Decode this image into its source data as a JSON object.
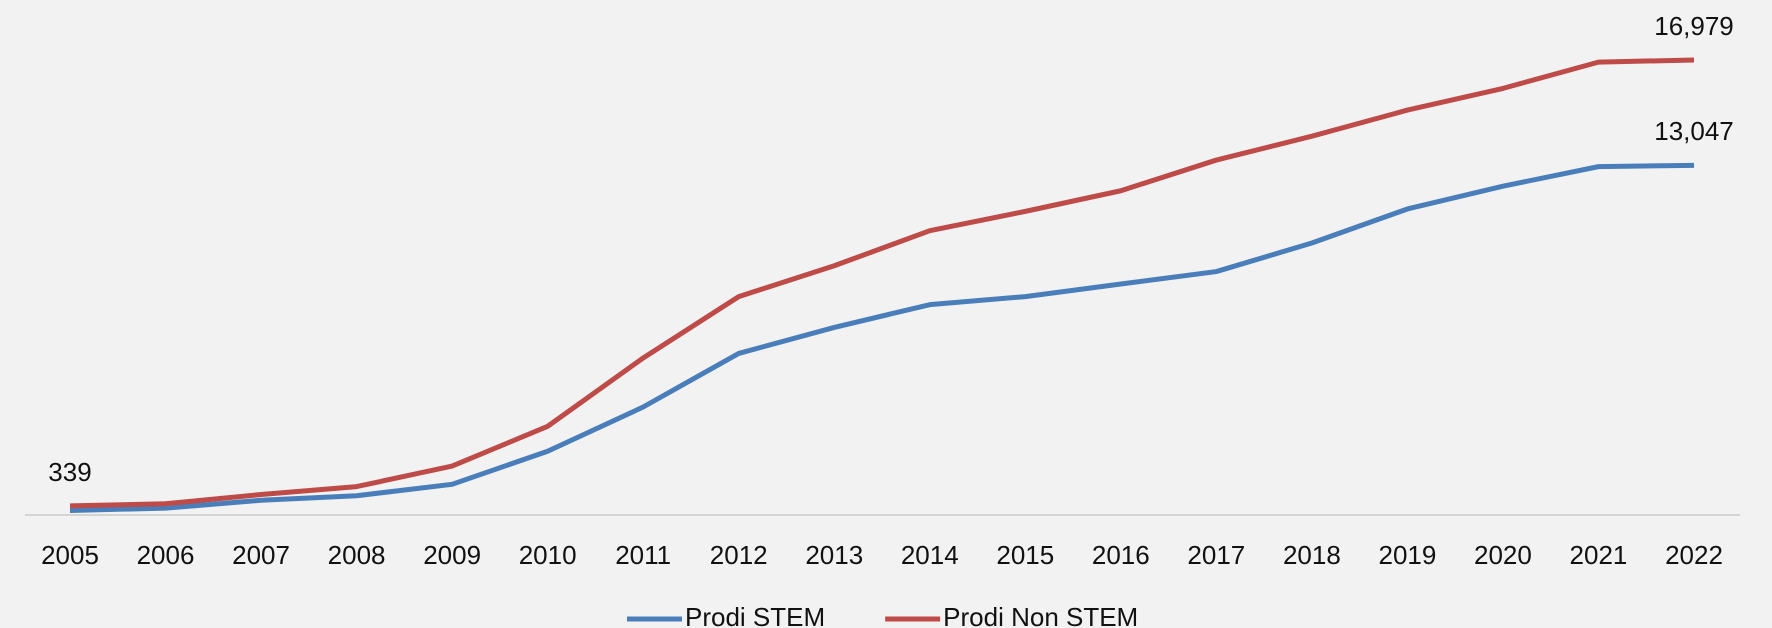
{
  "chart_data": {
    "type": "line",
    "categories": [
      "2005",
      "2006",
      "2007",
      "2008",
      "2009",
      "2010",
      "2011",
      "2012",
      "2013",
      "2014",
      "2015",
      "2016",
      "2017",
      "2018",
      "2019",
      "2020",
      "2021",
      "2022"
    ],
    "series": [
      {
        "name": "Prodi STEM",
        "color": "#4a7ebb",
        "values": [
          170,
          255,
          550,
          720,
          1145,
          2380,
          4030,
          6030,
          7000,
          7850,
          8150,
          8620,
          9085,
          10150,
          11420,
          12270,
          13000,
          13047
        ],
        "value_labels": [
          null,
          null,
          null,
          null,
          null,
          null,
          null,
          null,
          null,
          null,
          null,
          null,
          null,
          null,
          null,
          null,
          null,
          "13,047"
        ]
      },
      {
        "name": "Prodi Non STEM",
        "color": "#be4b48",
        "values": [
          339,
          420,
          765,
          1060,
          1825,
          3310,
          5860,
          8150,
          9300,
          10610,
          11330,
          12100,
          13245,
          14135,
          15110,
          15920,
          16900,
          16979
        ],
        "value_labels": [
          "339",
          null,
          null,
          null,
          null,
          null,
          null,
          null,
          null,
          null,
          null,
          null,
          null,
          null,
          null,
          null,
          null,
          "16,979"
        ]
      }
    ],
    "ylim": [
      0,
      17800
    ]
  }
}
